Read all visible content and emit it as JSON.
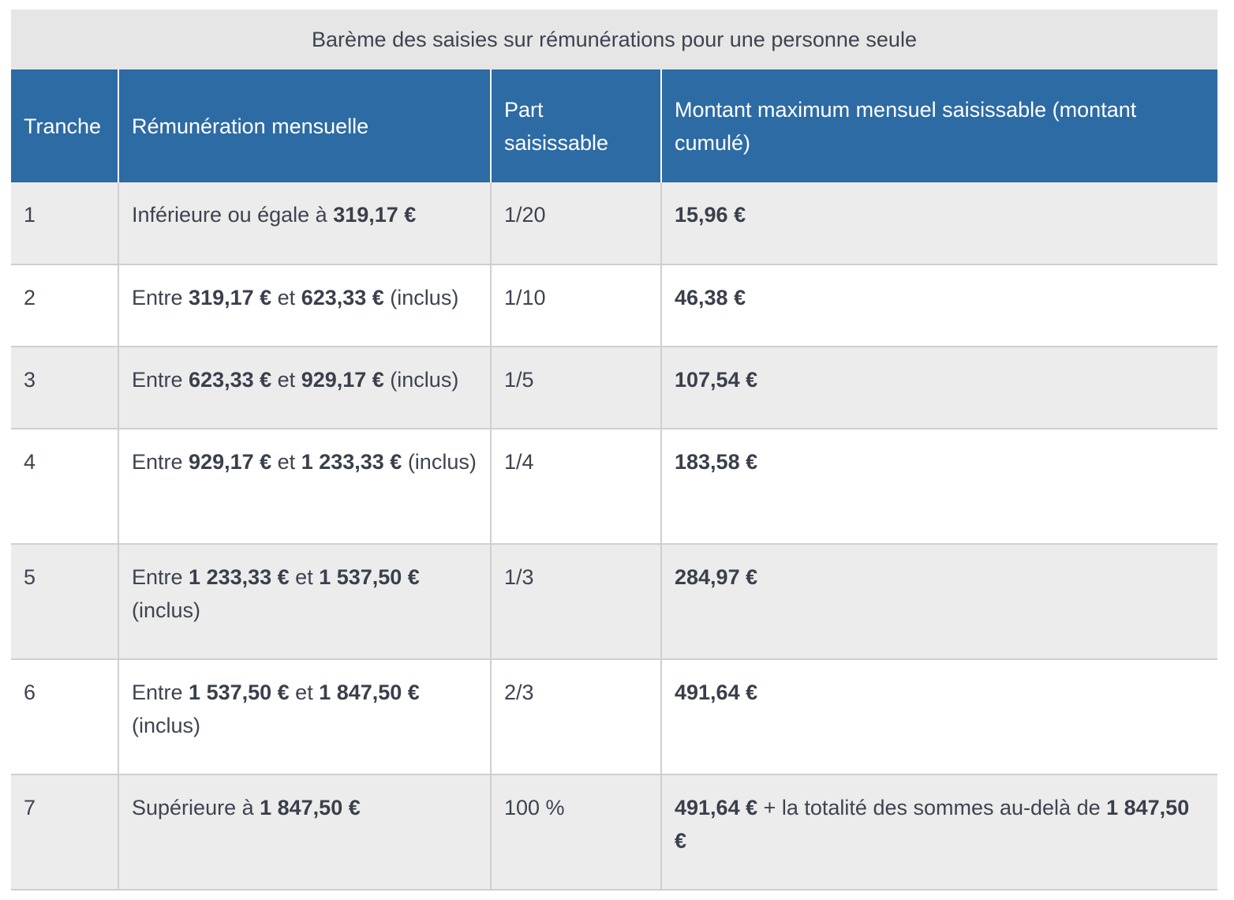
{
  "table": {
    "caption": "Barème des saisies sur rémunérations pour une personne seule",
    "headers": [
      "Tranche",
      "Rémunération mensuelle",
      "Part saisissable",
      "Montant maximum mensuel saisissable (montant cumulé)"
    ],
    "rows": [
      {
        "tranche": "1",
        "rem": {
          "a": "Inférieure ou égale à ",
          "b": "319,17 €"
        },
        "part": "1/20",
        "montant": {
          "amount": "15,96 €"
        }
      },
      {
        "tranche": "2",
        "rem": {
          "a": "Entre ",
          "b": "319,17 €",
          "c": " et ",
          "d": "623,33 €",
          "e": " (inclus)"
        },
        "part": "1/10",
        "montant": {
          "amount": "46,38 €"
        }
      },
      {
        "tranche": "3",
        "rem": {
          "a": "Entre ",
          "b": "623,33 €",
          "c": " et ",
          "d": "929,17 €",
          "e": " (inclus)"
        },
        "part": "1/5",
        "montant": {
          "amount": "107,54 €"
        }
      },
      {
        "tranche": "4",
        "rem": {
          "a": "Entre ",
          "b": "929,17 €",
          "c": " et ",
          "d": "1 233,33 €",
          "e": " (inclus)"
        },
        "part": "1/4",
        "montant": {
          "amount": "183,58 €"
        }
      },
      {
        "tranche": "5",
        "rem": {
          "a": "Entre ",
          "b": "1 233,33 €",
          "c": " et ",
          "d": "1 537,50 €",
          "e": " (inclus)"
        },
        "part": "1/3",
        "montant": {
          "amount": "284,97 €"
        }
      },
      {
        "tranche": "6",
        "rem": {
          "a": "Entre ",
          "b": "1 537,50 €",
          "c": " et ",
          "d": "1 847,50 €",
          "e": " (inclus)"
        },
        "part": "2/3",
        "montant": {
          "amount": "491,64 €"
        }
      },
      {
        "tranche": "7",
        "rem": {
          "a": "Supérieure à ",
          "b": "1 847,50 €"
        },
        "part": "100 %",
        "montant": {
          "amount": "491,64 €",
          "text": " + la totalité des sommes au-delà de ",
          "amount2": "1 847,50 €"
        }
      }
    ]
  },
  "colors": {
    "header_bg": "#2d6ba4",
    "caption_bg": "#e6e6e6",
    "row_alt_bg": "#ececec",
    "text": "#3e4350"
  }
}
